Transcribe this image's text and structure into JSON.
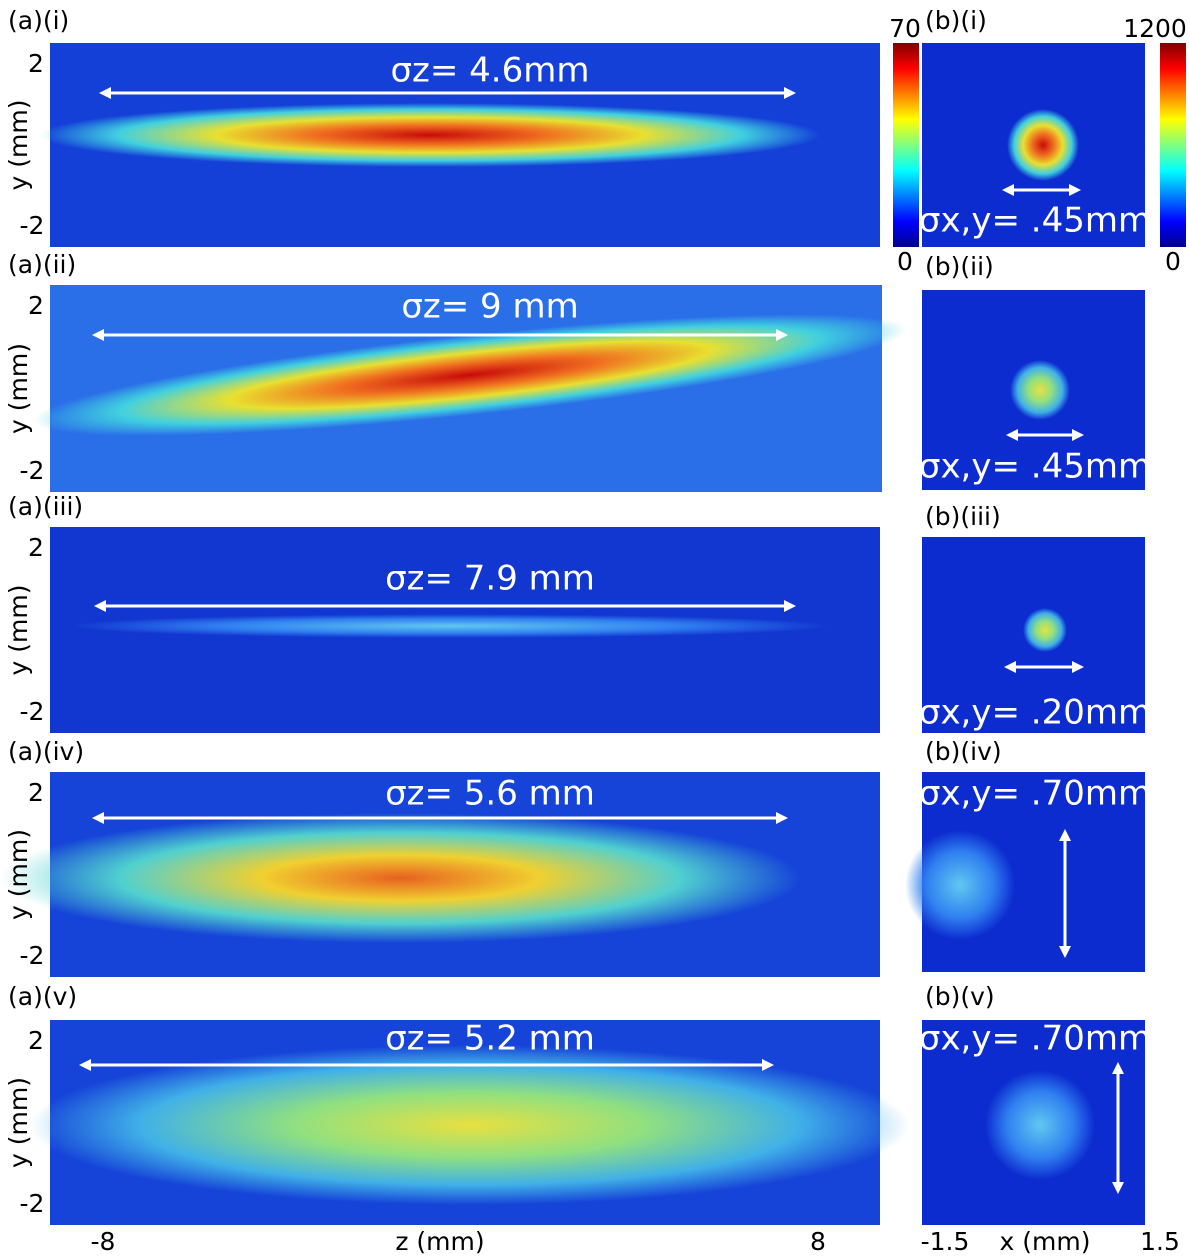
{
  "panels_a": [
    {
      "label": "(a)(i)",
      "annotation": "σz= 4.6mm"
    },
    {
      "label": "(a)(ii)",
      "annotation": "σz= 9 mm"
    },
    {
      "label": "(a)(iii)",
      "annotation": "σz= 7.9 mm"
    },
    {
      "label": "(a)(iv)",
      "annotation": "σz= 5.6 mm"
    },
    {
      "label": "(a)(v)",
      "annotation": "σz= 5.2 mm"
    }
  ],
  "panels_b": [
    {
      "label": "(b)(i)",
      "annotation": "σx,y= .45mm"
    },
    {
      "label": "(b)(ii)",
      "annotation": "σx,y= .45mm"
    },
    {
      "label": "(b)(iii)",
      "annotation": "σx,y= .20mm"
    },
    {
      "label": "(b)(iv)",
      "annotation": "σx,y= .70mm"
    },
    {
      "label": "(b)(v)",
      "annotation": "σx,y= .70mm"
    }
  ],
  "y_axis": {
    "label": "y (mm)",
    "ticks": [
      "2",
      "-2"
    ]
  },
  "colorbars": [
    {
      "max": "70",
      "min": "0"
    },
    {
      "max": "1200",
      "min": "0"
    }
  ],
  "x_axis_a": {
    "label": "z (mm)",
    "ticks": [
      "-8",
      "8"
    ]
  },
  "x_axis_b": {
    "label": "x (mm)",
    "ticks": [
      "-1.5",
      "1.5"
    ]
  }
}
